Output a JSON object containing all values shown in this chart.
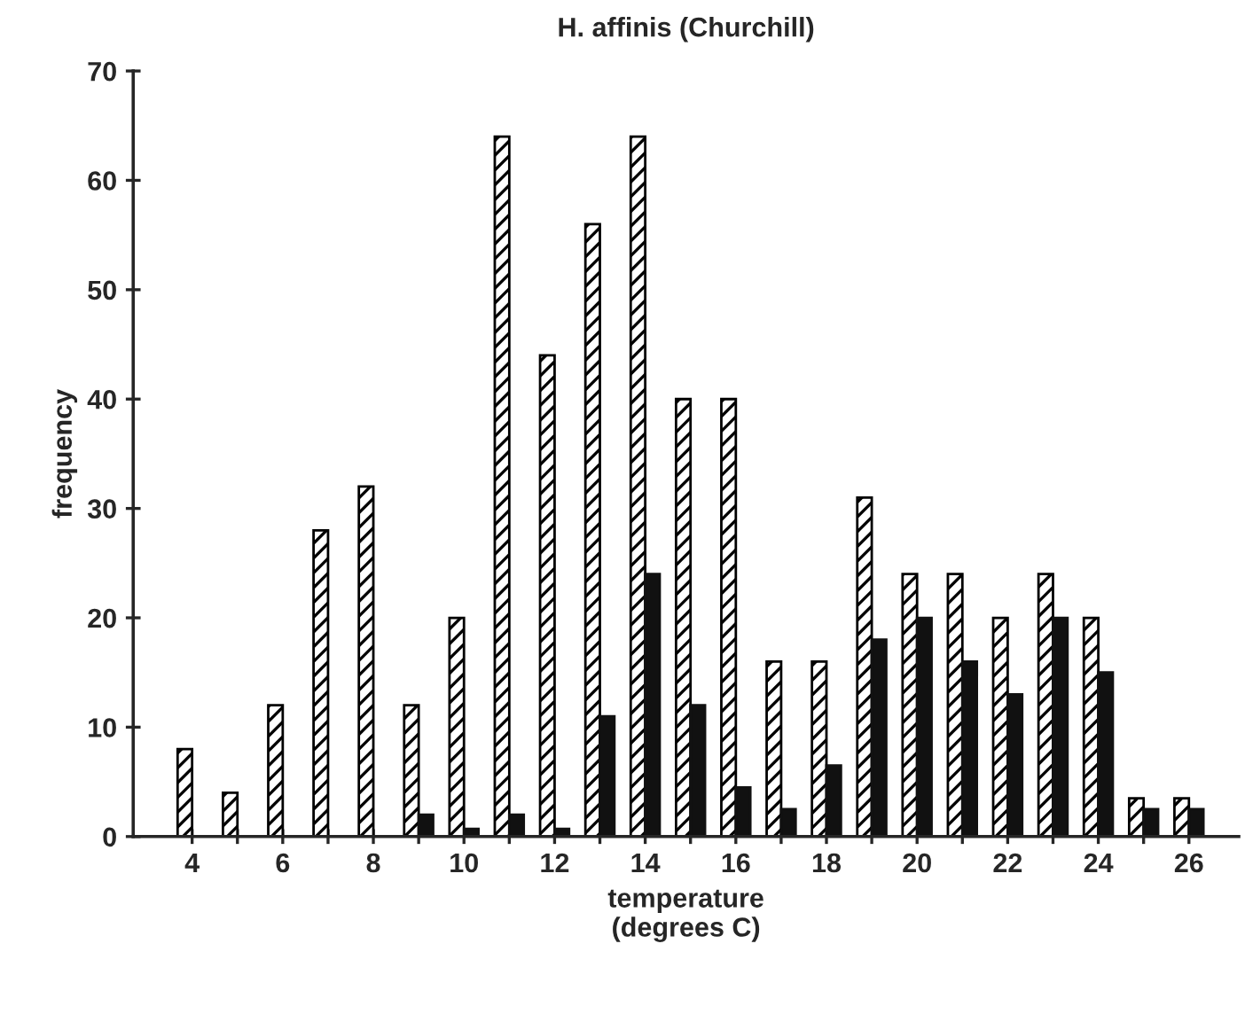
{
  "chart_data": {
    "type": "bar",
    "title": "H. affinis (Churchill)",
    "xlabel": "temperature\n(degrees C)",
    "ylabel": "frequency",
    "x": [
      4,
      5,
      6,
      7,
      8,
      9,
      10,
      11,
      12,
      13,
      14,
      15,
      16,
      17,
      18,
      19,
      20,
      21,
      22,
      23,
      24,
      25,
      26
    ],
    "series": [
      {
        "color": "#000000",
        "values": [
          8,
          4,
          12,
          28,
          32,
          12,
          20,
          64,
          44,
          56,
          64,
          40,
          40,
          16,
          16,
          31,
          24,
          24,
          20,
          24,
          20,
          3.5,
          3.5
        ]
      },
      {
        "color": "#111111",
        "values": [
          null,
          null,
          null,
          null,
          null,
          2,
          0.7,
          2,
          0.7,
          11,
          24,
          12,
          4.5,
          2.5,
          6.5,
          18,
          20,
          16,
          13,
          20,
          15,
          2.5,
          2.5
        ]
      }
    ],
    "xlim": [
      2.7,
      27.1
    ],
    "xticks": [
      4,
      {
        "value": 5,
        "label": null
      },
      6,
      {
        "value": 7,
        "label": null
      },
      8,
      {
        "value": 9,
        "label": null
      },
      10,
      {
        "value": 11,
        "label": null
      },
      12,
      {
        "value": 13,
        "label": null
      },
      14,
      {
        "value": 15,
        "label": null
      },
      16,
      {
        "value": 17,
        "label": null
      },
      18,
      {
        "value": 19,
        "label": null
      },
      20,
      {
        "value": 21,
        "label": null
      },
      22,
      {
        "value": 23,
        "label": null
      },
      24,
      {
        "value": 25,
        "label": null
      },
      26
    ],
    "ylim": [
      0,
      70
    ],
    "yticks": [
      0,
      10,
      20,
      30,
      40,
      50,
      60,
      70
    ],
    "grid": false,
    "legend": false
  }
}
